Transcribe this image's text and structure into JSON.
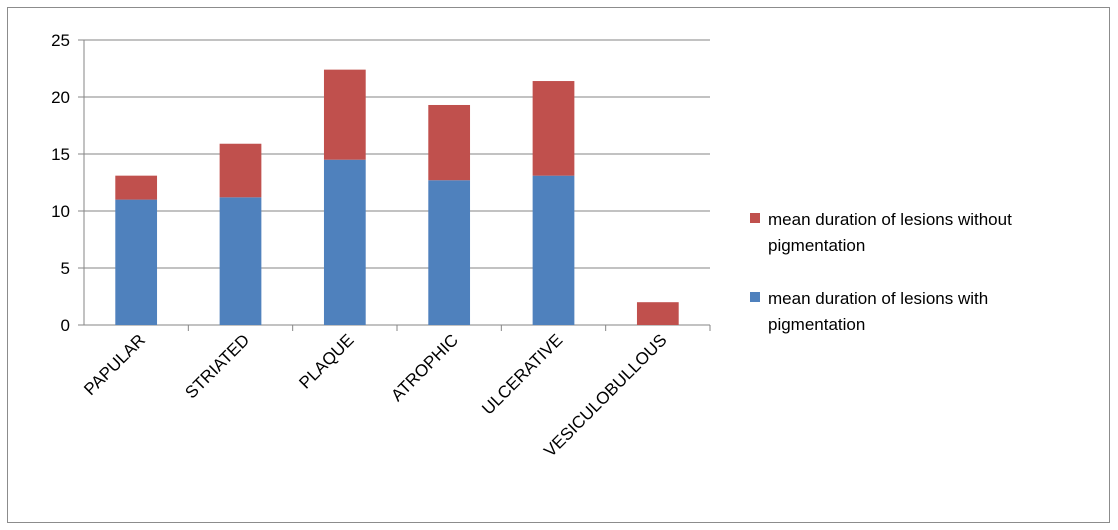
{
  "chart_data": {
    "type": "bar",
    "stacked": true,
    "categories": [
      "PAPULAR",
      "STRIATED",
      "PLAQUE",
      "ATROPHIC",
      "ULCERATIVE",
      "VESICULOBULLOUS"
    ],
    "series": [
      {
        "name": "mean duration of lesions with pigmentation",
        "color": "#4F81BD",
        "values": [
          11,
          11.2,
          14.5,
          12.7,
          13.1,
          0
        ]
      },
      {
        "name": "mean duration of lesions without pigmentation",
        "color": "#C0504D",
        "values": [
          2.1,
          4.7,
          7.9,
          6.6,
          8.3,
          2
        ]
      }
    ],
    "ylim": [
      0,
      25
    ],
    "yticks": [
      "0",
      "5",
      "10",
      "15",
      "20",
      "25"
    ],
    "grid": true,
    "legend": {
      "position": "right",
      "order": [
        "mean duration of lesions without pigmentation",
        "mean duration of lesions with pigmentation"
      ],
      "lines": [
        [
          "mean duration of lesions without",
          "pigmentation"
        ],
        [
          "mean duration of lesions with",
          "pigmentation"
        ]
      ]
    }
  }
}
